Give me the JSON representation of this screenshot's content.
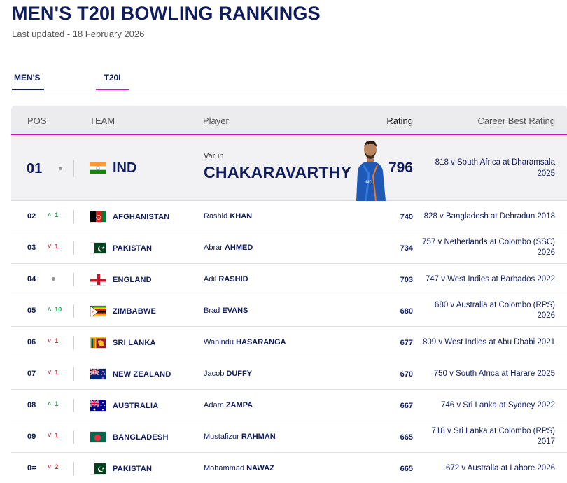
{
  "header": {
    "title": "MEN'S T20I BOWLING RANKINGS",
    "updated": "Last updated - 18 February 2026"
  },
  "tabs": [
    {
      "label": "MEN'S"
    },
    {
      "label": "T20I"
    }
  ],
  "columns": {
    "pos": "POS",
    "team": "TEAM",
    "player": "Player",
    "rating": "Rating",
    "best": "Career Best Rating"
  },
  "top": {
    "pos": "01",
    "team": "IND",
    "flag": "india-flag",
    "first_name": "Varun",
    "last_name": "CHAKARAVARTHY",
    "rating": "796",
    "best_line1": "818 v South Africa at Dharamsala",
    "best_line2": "2025"
  },
  "rows": [
    {
      "pos": "02",
      "move": "up",
      "move_value": "1",
      "flag": "afghanistan-flag",
      "team": "AFGHANISTAN",
      "first": "Rashid",
      "last": "KHAN",
      "rating": "740",
      "best_line1": "828 v Bangladesh at Dehradun 2018",
      "best_line2": ""
    },
    {
      "pos": "03",
      "move": "down",
      "move_value": "1",
      "flag": "pakistan-flag",
      "team": "PAKISTAN",
      "first": "Abrar",
      "last": "AHMED",
      "rating": "734",
      "best_line1": "757 v Netherlands at Colombo (SSC)",
      "best_line2": "2026"
    },
    {
      "pos": "04",
      "move": "none",
      "move_value": "",
      "flag": "england-flag",
      "team": "ENGLAND",
      "first": "Adil",
      "last": "RASHID",
      "rating": "703",
      "best_line1": "747 v West Indies at Barbados 2022",
      "best_line2": ""
    },
    {
      "pos": "05",
      "move": "up",
      "move_value": "10",
      "flag": "zimbabwe-flag",
      "team": "ZIMBABWE",
      "first": "Brad",
      "last": "EVANS",
      "rating": "680",
      "best_line1": "680 v Australia at Colombo (RPS)",
      "best_line2": "2026"
    },
    {
      "pos": "06",
      "move": "down",
      "move_value": "1",
      "flag": "sri-lanka-flag",
      "team": "SRI LANKA",
      "first": "Wanindu",
      "last": "HASARANGA",
      "rating": "677",
      "best_line1": "809 v West Indies at Abu Dhabi 2021",
      "best_line2": ""
    },
    {
      "pos": "07",
      "move": "down",
      "move_value": "1",
      "flag": "new-zealand-flag",
      "team": "NEW ZEALAND",
      "first": "Jacob",
      "last": "DUFFY",
      "rating": "670",
      "best_line1": "750 v South Africa at Harare 2025",
      "best_line2": ""
    },
    {
      "pos": "08",
      "move": "up",
      "move_value": "1",
      "flag": "australia-flag",
      "team": "AUSTRALIA",
      "first": "Adam",
      "last": "ZAMPA",
      "rating": "667",
      "best_line1": "746 v Sri Lanka at Sydney 2022",
      "best_line2": ""
    },
    {
      "pos": "09",
      "move": "down",
      "move_value": "1",
      "flag": "bangladesh-flag",
      "team": "BANGLADESH",
      "first": "Mustafizur",
      "last": "RAHMAN",
      "rating": "665",
      "best_line1": "718 v Sri Lanka at Colombo (RPS)",
      "best_line2": "2017"
    },
    {
      "pos": "0=",
      "move": "down",
      "move_value": "2",
      "flag": "pakistan-flag",
      "team": "PAKISTAN",
      "first": "Mohammad",
      "last": "NAWAZ",
      "rating": "665",
      "best_line1": "672 v Australia at Lahore 2026",
      "best_line2": ""
    }
  ],
  "colors": {
    "navy": "#101c5c",
    "accent": "#d60ec0",
    "up": "#1ea04b",
    "down": "#d3242b"
  }
}
